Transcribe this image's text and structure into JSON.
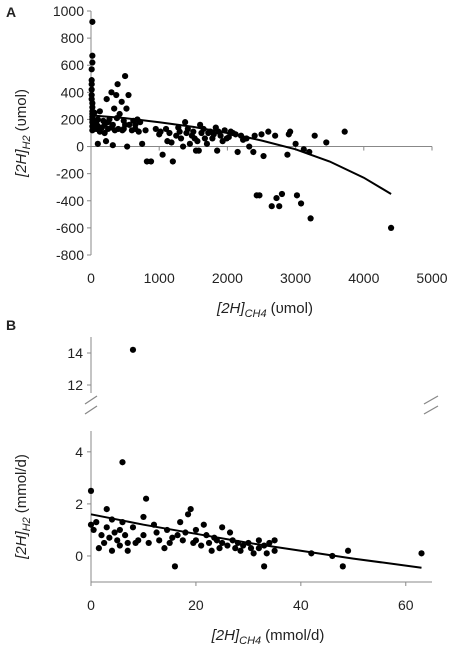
{
  "chart_data": [
    {
      "panel": "A",
      "type": "scatter",
      "xlabel_main": "[2H]",
      "xlabel_sub": "CH4",
      "xlabel_unit": "(υmol)",
      "ylabel_main": "[2H]",
      "ylabel_sub": "H2",
      "ylabel_unit": "(υmol)",
      "xlim": [
        0,
        5000
      ],
      "ylim": [
        -800,
        1000
      ],
      "xticks": [
        "0",
        "1000",
        "2000",
        "3000",
        "4000",
        "5000"
      ],
      "yticks": [
        "1000",
        "800",
        "600",
        "400",
        "200",
        "0",
        "-200",
        "-400",
        "-600",
        "-800"
      ],
      "grid": false,
      "trendline": [
        [
          0,
          230
        ],
        [
          500,
          210
        ],
        [
          1000,
          180
        ],
        [
          1500,
          145
        ],
        [
          2000,
          100
        ],
        [
          2500,
          45
        ],
        [
          3000,
          -20
        ],
        [
          3500,
          -110
        ],
        [
          4000,
          -230
        ],
        [
          4400,
          -350
        ]
      ],
      "points": [
        [
          20,
          920
        ],
        [
          20,
          670
        ],
        [
          20,
          620
        ],
        [
          10,
          570
        ],
        [
          10,
          490
        ],
        [
          10,
          460
        ],
        [
          10,
          420
        ],
        [
          10,
          380
        ],
        [
          10,
          350
        ],
        [
          20,
          320
        ],
        [
          20,
          290
        ],
        [
          20,
          260
        ],
        [
          20,
          240
        ],
        [
          20,
          220
        ],
        [
          20,
          200
        ],
        [
          20,
          180
        ],
        [
          20,
          150
        ],
        [
          20,
          120
        ],
        [
          50,
          250
        ],
        [
          50,
          180
        ],
        [
          50,
          130
        ],
        [
          80,
          130
        ],
        [
          80,
          170
        ],
        [
          100,
          20
        ],
        [
          100,
          150
        ],
        [
          100,
          200
        ],
        [
          130,
          110
        ],
        [
          130,
          260
        ],
        [
          160,
          140
        ],
        [
          180,
          190
        ],
        [
          200,
          160
        ],
        [
          200,
          100
        ],
        [
          220,
          40
        ],
        [
          230,
          350
        ],
        [
          250,
          180
        ],
        [
          250,
          130
        ],
        [
          270,
          200
        ],
        [
          300,
          400
        ],
        [
          300,
          140
        ],
        [
          320,
          160
        ],
        [
          320,
          10
        ],
        [
          340,
          280
        ],
        [
          350,
          120
        ],
        [
          370,
          380
        ],
        [
          380,
          210
        ],
        [
          390,
          460
        ],
        [
          400,
          130
        ],
        [
          420,
          240
        ],
        [
          450,
          330
        ],
        [
          460,
          120
        ],
        [
          480,
          190
        ],
        [
          480,
          130
        ],
        [
          500,
          520
        ],
        [
          500,
          160
        ],
        [
          520,
          280
        ],
        [
          530,
          0
        ],
        [
          550,
          380
        ],
        [
          560,
          160
        ],
        [
          600,
          120
        ],
        [
          620,
          190
        ],
        [
          650,
          160
        ],
        [
          650,
          130
        ],
        [
          680,
          200
        ],
        [
          700,
          110
        ],
        [
          720,
          180
        ],
        [
          750,
          20
        ],
        [
          800,
          120
        ],
        [
          820,
          -110
        ],
        [
          880,
          -110
        ],
        [
          950,
          130
        ],
        [
          1000,
          90
        ],
        [
          1020,
          110
        ],
        [
          1050,
          -60
        ],
        [
          1100,
          130
        ],
        [
          1120,
          40
        ],
        [
          1150,
          100
        ],
        [
          1180,
          30
        ],
        [
          1200,
          -110
        ],
        [
          1250,
          80
        ],
        [
          1280,
          140
        ],
        [
          1300,
          110
        ],
        [
          1320,
          60
        ],
        [
          1350,
          0
        ],
        [
          1380,
          180
        ],
        [
          1400,
          100
        ],
        [
          1420,
          130
        ],
        [
          1450,
          20
        ],
        [
          1480,
          80
        ],
        [
          1500,
          110
        ],
        [
          1520,
          60
        ],
        [
          1540,
          -30
        ],
        [
          1560,
          40
        ],
        [
          1580,
          -30
        ],
        [
          1600,
          160
        ],
        [
          1620,
          100
        ],
        [
          1650,
          130
        ],
        [
          1670,
          60
        ],
        [
          1700,
          20
        ],
        [
          1720,
          100
        ],
        [
          1750,
          110
        ],
        [
          1780,
          60
        ],
        [
          1800,
          90
        ],
        [
          1830,
          140
        ],
        [
          1850,
          -30
        ],
        [
          1870,
          110
        ],
        [
          1900,
          80
        ],
        [
          1930,
          40
        ],
        [
          1960,
          120
        ],
        [
          1990,
          60
        ],
        [
          2020,
          70
        ],
        [
          2050,
          110
        ],
        [
          2080,
          100
        ],
        [
          2120,
          90
        ],
        [
          2150,
          -40
        ],
        [
          2200,
          80
        ],
        [
          2230,
          50
        ],
        [
          2280,
          60
        ],
        [
          2320,
          0
        ],
        [
          2380,
          -40
        ],
        [
          2400,
          80
        ],
        [
          2430,
          -360
        ],
        [
          2470,
          -360
        ],
        [
          2500,
          90
        ],
        [
          2530,
          -70
        ],
        [
          2600,
          110
        ],
        [
          2650,
          -440
        ],
        [
          2700,
          80
        ],
        [
          2720,
          -380
        ],
        [
          2760,
          -440
        ],
        [
          2800,
          -350
        ],
        [
          2880,
          -60
        ],
        [
          2900,
          90
        ],
        [
          2920,
          110
        ],
        [
          3000,
          20
        ],
        [
          3020,
          -360
        ],
        [
          3080,
          -420
        ],
        [
          3120,
          -20
        ],
        [
          3200,
          -40
        ],
        [
          3220,
          -530
        ],
        [
          3280,
          80
        ],
        [
          3450,
          30
        ],
        [
          3720,
          110
        ],
        [
          4400,
          -600
        ]
      ]
    },
    {
      "panel": "B",
      "type": "scatter",
      "xlabel_main": "[2H]",
      "xlabel_sub": "CH4",
      "xlabel_unit": "(mmol/d)",
      "ylabel_main": "[2H]",
      "ylabel_sub": "H2",
      "ylabel_unit": "(mmol/d)",
      "xlim": [
        0,
        65
      ],
      "ylim_lower": [
        -1,
        4.8
      ],
      "ylim_upper": [
        11.5,
        15
      ],
      "axis_break": true,
      "xticks": [
        "0",
        "20",
        "40",
        "60"
      ],
      "yticks_lower": [
        "4",
        "2",
        "0"
      ],
      "yticks_upper": [
        "14",
        "12"
      ],
      "grid": false,
      "trendline": [
        [
          0,
          1.6
        ],
        [
          10,
          1.2
        ],
        [
          20,
          0.85
        ],
        [
          30,
          0.5
        ],
        [
          40,
          0.2
        ],
        [
          50,
          -0.1
        ],
        [
          63,
          -0.45
        ]
      ],
      "points": [
        [
          0,
          2.5
        ],
        [
          0,
          1.2
        ],
        [
          0.5,
          1.0
        ],
        [
          1,
          1.3
        ],
        [
          1.5,
          0.3
        ],
        [
          2,
          0.8
        ],
        [
          2.5,
          0.5
        ],
        [
          3,
          1.8
        ],
        [
          3,
          1.1
        ],
        [
          3.5,
          0.7
        ],
        [
          4,
          1.4
        ],
        [
          4,
          0.2
        ],
        [
          4.5,
          0.9
        ],
        [
          5,
          0.6
        ],
        [
          5.5,
          0.4
        ],
        [
          5.5,
          1.0
        ],
        [
          6,
          3.6
        ],
        [
          6,
          1.3
        ],
        [
          6.5,
          0.8
        ],
        [
          7,
          0.5
        ],
        [
          7,
          0.2
        ],
        [
          8,
          14.2
        ],
        [
          8,
          1.1
        ],
        [
          8.5,
          0.5
        ],
        [
          9,
          0.6
        ],
        [
          10,
          1.5
        ],
        [
          10,
          0.8
        ],
        [
          10.5,
          2.2
        ],
        [
          11,
          0.5
        ],
        [
          12,
          1.2
        ],
        [
          12.5,
          0.9
        ],
        [
          13,
          0.6
        ],
        [
          14,
          0.3
        ],
        [
          14.5,
          1.0
        ],
        [
          15,
          0.5
        ],
        [
          15.5,
          0.7
        ],
        [
          16,
          -0.4
        ],
        [
          16.5,
          0.8
        ],
        [
          17,
          1.3
        ],
        [
          17.5,
          0.6
        ],
        [
          18,
          0.9
        ],
        [
          18.5,
          1.6
        ],
        [
          19,
          1.8
        ],
        [
          19.5,
          0.5
        ],
        [
          20,
          1.0
        ],
        [
          20,
          0.6
        ],
        [
          21,
          0.4
        ],
        [
          21.5,
          1.2
        ],
        [
          22,
          0.8
        ],
        [
          22.5,
          0.5
        ],
        [
          23,
          0.2
        ],
        [
          23.5,
          0.7
        ],
        [
          24,
          0.6
        ],
        [
          24.5,
          0.3
        ],
        [
          25,
          1.1
        ],
        [
          25,
          0.5
        ],
        [
          26,
          0.4
        ],
        [
          26.5,
          0.9
        ],
        [
          27,
          0.6
        ],
        [
          27.5,
          0.3
        ],
        [
          28,
          0.5
        ],
        [
          28.5,
          0.2
        ],
        [
          29,
          0.4
        ],
        [
          30,
          0.5
        ],
        [
          30.5,
          0.3
        ],
        [
          31,
          0.1
        ],
        [
          32,
          0.6
        ],
        [
          32,
          0.3
        ],
        [
          33,
          0.4
        ],
        [
          33,
          -0.4
        ],
        [
          33.5,
          0.1
        ],
        [
          34,
          0.5
        ],
        [
          35,
          0.2
        ],
        [
          35,
          0.6
        ],
        [
          42,
          0.1
        ],
        [
          46,
          0.0
        ],
        [
          48,
          -0.4
        ],
        [
          49,
          0.2
        ],
        [
          63,
          0.1
        ]
      ]
    }
  ]
}
